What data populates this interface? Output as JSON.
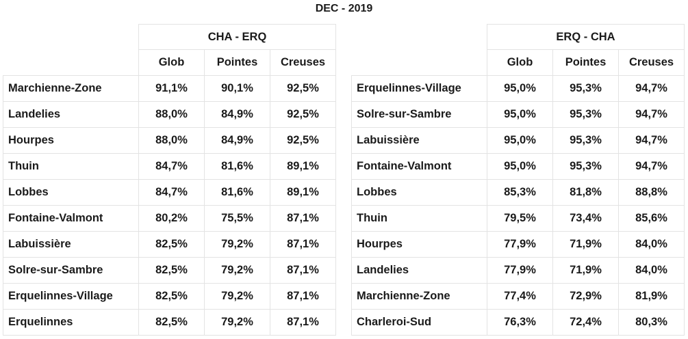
{
  "title": "DEC - 2019",
  "columns": [
    "Glob",
    "Pointes",
    "Creuses"
  ],
  "tables": [
    {
      "direction": "CHA - ERQ",
      "rows": [
        {
          "station": "Marchienne-Zone",
          "glob": "91,1%",
          "pointes": "90,1%",
          "creuses": "92,5%"
        },
        {
          "station": "Landelies",
          "glob": "88,0%",
          "pointes": "84,9%",
          "creuses": "92,5%"
        },
        {
          "station": "Hourpes",
          "glob": "88,0%",
          "pointes": "84,9%",
          "creuses": "92,5%"
        },
        {
          "station": "Thuin",
          "glob": "84,7%",
          "pointes": "81,6%",
          "creuses": "89,1%"
        },
        {
          "station": "Lobbes",
          "glob": "84,7%",
          "pointes": "81,6%",
          "creuses": "89,1%"
        },
        {
          "station": "Fontaine-Valmont",
          "glob": "80,2%",
          "pointes": "75,5%",
          "creuses": "87,1%"
        },
        {
          "station": "Labuissière",
          "glob": "82,5%",
          "pointes": "79,2%",
          "creuses": "87,1%"
        },
        {
          "station": "Solre-sur-Sambre",
          "glob": "82,5%",
          "pointes": "79,2%",
          "creuses": "87,1%"
        },
        {
          "station": "Erquelinnes-Village",
          "glob": "82,5%",
          "pointes": "79,2%",
          "creuses": "87,1%"
        },
        {
          "station": "Erquelinnes",
          "glob": "82,5%",
          "pointes": "79,2%",
          "creuses": "87,1%"
        }
      ]
    },
    {
      "direction": "ERQ - CHA",
      "rows": [
        {
          "station": "Erquelinnes-Village",
          "glob": "95,0%",
          "pointes": "95,3%",
          "creuses": "94,7%"
        },
        {
          "station": "Solre-sur-Sambre",
          "glob": "95,0%",
          "pointes": "95,3%",
          "creuses": "94,7%"
        },
        {
          "station": "Labuissière",
          "glob": "95,0%",
          "pointes": "95,3%",
          "creuses": "94,7%"
        },
        {
          "station": "Fontaine-Valmont",
          "glob": "95,0%",
          "pointes": "95,3%",
          "creuses": "94,7%"
        },
        {
          "station": "Lobbes",
          "glob": "85,3%",
          "pointes": "81,8%",
          "creuses": "88,8%"
        },
        {
          "station": "Thuin",
          "glob": "79,5%",
          "pointes": "73,4%",
          "creuses": "85,6%"
        },
        {
          "station": "Hourpes",
          "glob": "77,9%",
          "pointes": "71,9%",
          "creuses": "84,0%"
        },
        {
          "station": "Landelies",
          "glob": "77,9%",
          "pointes": "71,9%",
          "creuses": "84,0%"
        },
        {
          "station": "Marchienne-Zone",
          "glob": "77,4%",
          "pointes": "72,9%",
          "creuses": "81,9%"
        },
        {
          "station": "Charleroi-Sud",
          "glob": "76,3%",
          "pointes": "72,4%",
          "creuses": "80,3%"
        }
      ]
    }
  ]
}
